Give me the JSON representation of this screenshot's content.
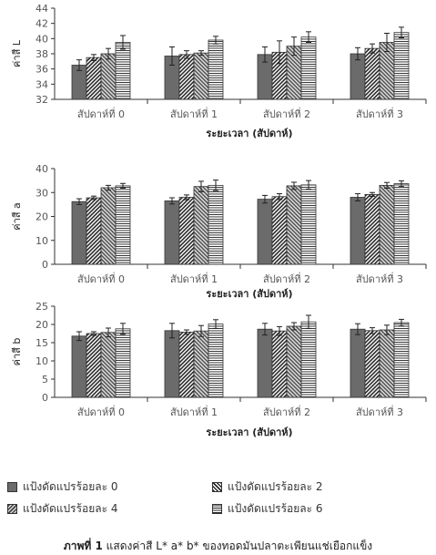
{
  "chart_data": [
    {
      "type": "bar",
      "ylabel": "ค่าสี L",
      "xlabel": "ระยะเวลา (สัปดาห์)",
      "ylim": [
        32,
        44
      ],
      "yticks": [
        32,
        34,
        36,
        38,
        40,
        42,
        44
      ],
      "categories": [
        "สัปดาห์ที่ 0",
        "สัปดาห์ที่ 1",
        "สัปดาห์ที่ 2",
        "สัปดาห์ที่ 3"
      ],
      "series": [
        {
          "name": "แป้งดัดแปรร้อยละ 0",
          "values": [
            36.5,
            37.7,
            37.9,
            38.0
          ],
          "errors": [
            0.7,
            1.2,
            1.0,
            0.8
          ]
        },
        {
          "name": "แป้งดัดแปรร้อยละ 2",
          "values": [
            37.5,
            37.9,
            38.2,
            38.7
          ],
          "errors": [
            0.4,
            0.5,
            1.5,
            0.6
          ]
        },
        {
          "name": "แป้งดัดแปรร้อยละ 4",
          "values": [
            38.0,
            38.1,
            39.0,
            39.5
          ],
          "errors": [
            0.7,
            0.3,
            1.2,
            1.2
          ]
        },
        {
          "name": "แป้งดัดแปรร้อยละ 6",
          "values": [
            39.5,
            39.8,
            40.2,
            40.8
          ],
          "errors": [
            0.9,
            0.5,
            0.7,
            0.7
          ]
        }
      ],
      "grid": false
    },
    {
      "type": "bar",
      "ylabel": "ค่าสี a",
      "xlabel": "ระยะเวลา (สัปดาห์)",
      "ylim": [
        0,
        40
      ],
      "yticks": [
        0,
        10,
        20,
        30,
        40
      ],
      "categories": [
        "สัปดาห์ที่ 0",
        "สัปดาห์ที่ 1",
        "สัปดาห์ที่ 2",
        "สัปดาห์ที่ 3"
      ],
      "series": [
        {
          "name": "แป้งดัดแปรร้อยละ 0",
          "values": [
            26.2,
            26.5,
            27.2,
            28.0
          ],
          "errors": [
            1.2,
            1.3,
            1.6,
            1.5
          ]
        },
        {
          "name": "แป้งดัดแปรร้อยละ 2",
          "values": [
            27.8,
            28.0,
            28.3,
            29.2
          ],
          "errors": [
            0.7,
            1.0,
            1.2,
            0.8
          ]
        },
        {
          "name": "แป้งดัดแปรร้อยละ 4",
          "values": [
            32.0,
            32.5,
            32.8,
            33.0
          ],
          "errors": [
            1.0,
            2.2,
            1.5,
            1.2
          ]
        },
        {
          "name": "แป้งดัดแปรร้อยละ 6",
          "values": [
            32.8,
            33.0,
            33.2,
            33.7
          ],
          "errors": [
            1.0,
            2.2,
            1.8,
            1.2
          ]
        }
      ],
      "grid": false
    },
    {
      "type": "bar",
      "ylabel": "ค่าสี b",
      "xlabel": "ระยะเวลา (สัปดาห์)",
      "ylim": [
        0,
        25
      ],
      "yticks": [
        0,
        5,
        10,
        15,
        20,
        25
      ],
      "categories": [
        "สัปดาห์ที่ 0",
        "สัปดาห์ที่ 1",
        "สัปดาห์ที่ 2",
        "สัปดาห์ที่ 3"
      ],
      "series": [
        {
          "name": "แป้งดัดแปรร้อยละ 0",
          "values": [
            16.8,
            18.3,
            18.7,
            18.7
          ],
          "errors": [
            1.2,
            2.0,
            1.6,
            1.5
          ]
        },
        {
          "name": "แป้งดัดแปรร้อยละ 2",
          "values": [
            17.5,
            17.9,
            18.2,
            18.3
          ],
          "errors": [
            0.5,
            0.6,
            1.2,
            0.8
          ]
        },
        {
          "name": "แป้งดัดแปรร้อยละ 4",
          "values": [
            17.8,
            18.2,
            19.5,
            18.5
          ],
          "errors": [
            1.2,
            1.5,
            1.0,
            1.3
          ]
        },
        {
          "name": "แป้งดัดแปรร้อยละ 6",
          "values": [
            18.8,
            20.1,
            20.7,
            20.5
          ],
          "errors": [
            1.5,
            1.2,
            1.8,
            0.9
          ]
        }
      ],
      "grid": false
    }
  ],
  "legend": {
    "items": [
      "แป้งดัดแปรร้อยละ 0",
      "แป้งดัดแปรร้อยละ 2",
      "แป้งดัดแปรร้อยละ 4",
      "แป้งดัดแปรร้อยละ 6"
    ]
  },
  "caption": {
    "label": "ภาพที่ 1",
    "text": " แสดงค่าสี L* a* b* ของทอดมันปลาตะเพียนแช่เยือกแข็ง"
  },
  "colors": {
    "axis": "#333333",
    "text": "#222222"
  }
}
